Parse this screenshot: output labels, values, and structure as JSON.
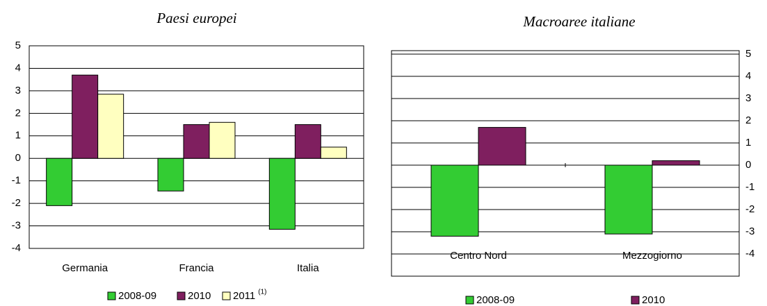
{
  "chart_data": [
    {
      "type": "bar",
      "title": "Paesi europei",
      "categories": [
        "Germania",
        "Francia",
        "Italia"
      ],
      "series": [
        {
          "name": "2008-09",
          "color": "#33cc33",
          "values": [
            -2.1,
            -1.45,
            -3.15
          ]
        },
        {
          "name": "2010",
          "color": "#7f1f5f",
          "values": [
            3.7,
            1.5,
            1.5
          ]
        },
        {
          "name": "2011",
          "name_note": "(1)",
          "color": "#ffffc0",
          "values": [
            2.85,
            1.6,
            0.5
          ]
        }
      ],
      "ylim": [
        -4,
        5
      ],
      "yticks": [
        -4,
        -3,
        -2,
        -1,
        0,
        1,
        2,
        3,
        4,
        5
      ],
      "grid": true,
      "y_axis_side": "left",
      "legend": "bottom"
    },
    {
      "type": "bar",
      "title": "Macroaree italiane",
      "categories": [
        "Centro Nord",
        "Mezzogiorno"
      ],
      "series": [
        {
          "name": "2008-09",
          "color": "#33cc33",
          "values": [
            -3.2,
            -3.1
          ]
        },
        {
          "name": "2010",
          "color": "#7f1f5f",
          "values": [
            1.7,
            0.2
          ]
        }
      ],
      "ylim": [
        -4,
        5
      ],
      "yticks": [
        -4,
        -3,
        -2,
        -1,
        0,
        1,
        2,
        3,
        4,
        5
      ],
      "grid": true,
      "y_axis_side": "right",
      "legend": "bottom"
    }
  ]
}
